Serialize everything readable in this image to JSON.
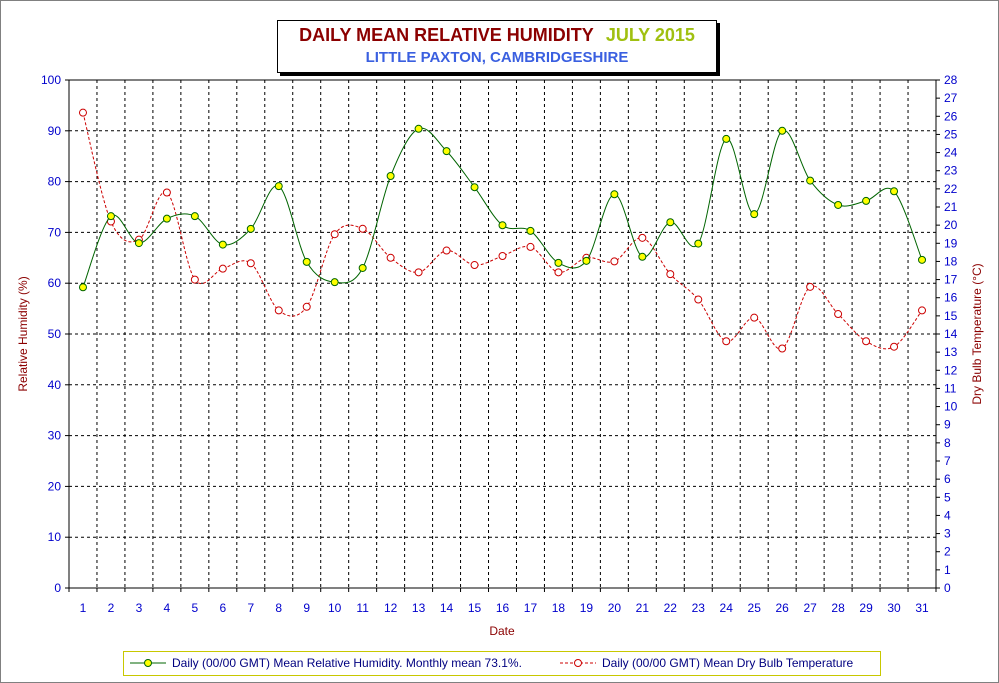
{
  "title": {
    "main": "DAILY MEAN RELATIVE HUMIDITY",
    "date": "JULY 2015",
    "subtitle": "LITTLE PAXTON, CAMBRIDGESHIRE"
  },
  "colors": {
    "humidity_line": "#006400",
    "humidity_marker_fill": "#ffff00",
    "temp_line": "#cc0000",
    "tick_text": "#0000cc",
    "axis_title": "#8b0000"
  },
  "chart_data": {
    "type": "line",
    "title": "DAILY MEAN RELATIVE HUMIDITY   JULY 2015",
    "subtitle": "LITTLE PAXTON, CAMBRIDGESHIRE",
    "xlabel": "Date",
    "ylabel": "Relative Humidity (%)",
    "y2label": "Dry Bulb Temperature (°C)",
    "ylim": [
      0,
      100
    ],
    "y2lim": [
      0,
      28
    ],
    "yticks": [
      "0",
      "10",
      "20",
      "30",
      "40",
      "50",
      "60",
      "70",
      "80",
      "90",
      "100"
    ],
    "y2ticks": [
      "0",
      "1",
      "2",
      "3",
      "4",
      "5",
      "6",
      "7",
      "8",
      "9",
      "10",
      "11",
      "12",
      "13",
      "14",
      "15",
      "16",
      "17",
      "18",
      "19",
      "20",
      "21",
      "22",
      "23",
      "24",
      "25",
      "26",
      "27",
      "28"
    ],
    "categories": [
      "1",
      "2",
      "3",
      "4",
      "5",
      "6",
      "7",
      "8",
      "9",
      "10",
      "11",
      "12",
      "13",
      "14",
      "15",
      "16",
      "17",
      "18",
      "19",
      "20",
      "21",
      "22",
      "23",
      "24",
      "25",
      "26",
      "27",
      "28",
      "29",
      "30",
      "31"
    ],
    "grid": true,
    "legend_position": "bottom",
    "series": [
      {
        "name": "Daily (00/00 GMT) Mean Relative Humidity. Monthly mean 73.1%.",
        "axis": "left",
        "values": [
          59.2,
          73.2,
          67.9,
          72.7,
          73.2,
          67.6,
          70.7,
          79.1,
          64.2,
          60.2,
          63.0,
          81.1,
          90.4,
          86.0,
          78.9,
          71.4,
          70.3,
          64.0,
          64.4,
          77.5,
          65.2,
          72.0,
          67.8,
          88.4,
          73.6,
          90.0,
          80.2,
          75.4,
          76.2,
          78.1,
          64.6
        ]
      },
      {
        "name": "Daily (00/00 GMT) Mean Dry Bulb Temperature",
        "axis": "right",
        "values": [
          26.2,
          20.2,
          19.2,
          21.8,
          17.0,
          17.6,
          17.9,
          15.3,
          15.5,
          19.5,
          19.8,
          18.2,
          17.4,
          18.6,
          17.8,
          18.3,
          18.8,
          17.4,
          18.2,
          18.0,
          19.3,
          17.3,
          15.9,
          13.6,
          14.9,
          13.2,
          16.6,
          15.1,
          13.6,
          13.3,
          15.3
        ]
      }
    ]
  },
  "legend": {
    "humidity": "Daily (00/00 GMT) Mean Relative Humidity. Monthly mean 73.1%.",
    "temperature": "Daily (00/00 GMT) Mean Dry Bulb Temperature"
  }
}
